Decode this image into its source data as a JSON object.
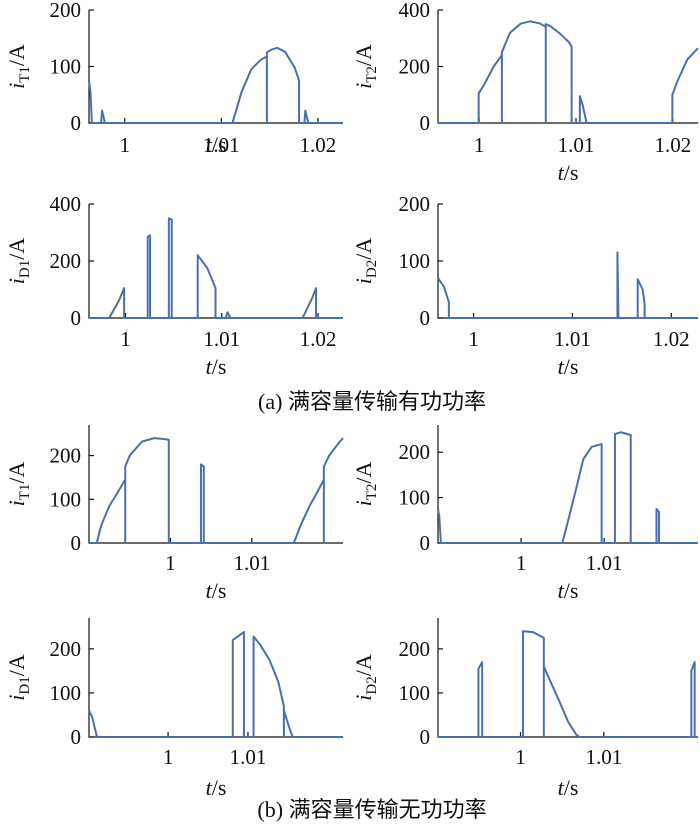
{
  "captions": {
    "a": "(a) 满容量传输有功功率",
    "b": "(b) 满容量传输无功功率"
  },
  "colors": {
    "series": "#4a6fb0",
    "axis": "#111111"
  },
  "chart_data": [
    {
      "id": "a1",
      "type": "line",
      "xlabel": {
        "var": "t",
        "unit": "/s"
      },
      "ylabel": {
        "var": "i",
        "sub": "T1",
        "unit": "/A"
      },
      "xlim": [
        0.9963,
        1.0226
      ],
      "ylim": [
        0,
        200
      ],
      "xticks": [
        1,
        1.01,
        1.02
      ],
      "xtick_labels": [
        "1",
        "1.01",
        "1.02"
      ],
      "yticks": [
        0,
        100,
        200
      ],
      "ytick_labels": [
        "0",
        "100",
        "200"
      ],
      "series": [
        {
          "points": [
            [
              0.9963,
              75
            ],
            [
              0.99645,
              55
            ],
            [
              0.9966,
              0
            ],
            [
              0.99755,
              0
            ],
            [
              0.99765,
              22
            ],
            [
              0.99795,
              0
            ],
            [
              1.01115,
              0
            ],
            [
              1.0121,
              55
            ],
            [
              1.0131,
              95
            ],
            [
              1.0141,
              112
            ],
            [
              1.01472,
              118
            ],
            [
              1.01472,
              0
            ],
            [
              1.01472,
              125
            ],
            [
              1.0152,
              130
            ],
            [
              1.0158,
              133
            ],
            [
              1.0166,
              126
            ],
            [
              1.0176,
              98
            ],
            [
              1.01805,
              75
            ],
            [
              1.01805,
              0
            ],
            [
              1.0186,
              0
            ],
            [
              1.0187,
              22
            ],
            [
              1.019,
              0
            ],
            [
              1.0226,
              0
            ]
          ]
        }
      ]
    },
    {
      "id": "a2",
      "type": "line",
      "xlabel": {
        "var": "t",
        "unit": "/s"
      },
      "ylabel": {
        "var": "i",
        "sub": "T2",
        "unit": "/A"
      },
      "xlim": [
        0.99575,
        1.0226
      ],
      "ylim": [
        0,
        400
      ],
      "xticks": [
        1,
        1.01,
        1.02
      ],
      "xtick_labels": [
        "1",
        "1.01",
        "1.02"
      ],
      "yticks": [
        0,
        200,
        400
      ],
      "ytick_labels": [
        "0",
        "200",
        "400"
      ],
      "series": [
        {
          "points": [
            [
              0.99575,
              0
            ],
            [
              0.99995,
              0
            ],
            [
              0.99995,
              105
            ],
            [
              1.0005,
              135
            ],
            [
              1.0015,
              200
            ],
            [
              1.00235,
              240
            ],
            [
              1.00235,
              0
            ],
            [
              1.00235,
              250
            ],
            [
              1.0027,
              280
            ],
            [
              1.0032,
              320
            ],
            [
              1.0043,
              352
            ],
            [
              1.0053,
              360
            ],
            [
              1.0063,
              352
            ],
            [
              1.00688,
              340
            ],
            [
              1.00688,
              0
            ],
            [
              1.00688,
              350
            ],
            [
              1.0073,
              344
            ],
            [
              1.0083,
              318
            ],
            [
              1.0093,
              285
            ],
            [
              1.00955,
              270
            ],
            [
              1.00955,
              0
            ],
            [
              1.0104,
              0
            ],
            [
              1.0104,
              95
            ],
            [
              1.0107,
              62
            ],
            [
              1.0111,
              0
            ],
            [
              1.01995,
              0
            ],
            [
              1.01995,
              100
            ],
            [
              1.0205,
              150
            ],
            [
              1.0215,
              225
            ],
            [
              1.0226,
              265
            ]
          ]
        }
      ]
    },
    {
      "id": "a3",
      "type": "line",
      "xlabel": {
        "var": "t",
        "unit": "/s"
      },
      "ylabel": {
        "var": "i",
        "sub": "D1",
        "unit": "/A"
      },
      "xlim": [
        0.9962,
        1.0226
      ],
      "ylim": [
        0,
        400
      ],
      "xticks": [
        1,
        1.01,
        1.02
      ],
      "xtick_labels": [
        "1",
        "1.01",
        "1.02"
      ],
      "yticks": [
        0,
        200,
        400
      ],
      "ytick_labels": [
        "0",
        "200",
        "400"
      ],
      "series": [
        {
          "points": [
            [
              0.9962,
              0
            ],
            [
              0.9983,
              0
            ],
            [
              0.9993,
              60
            ],
            [
              0.99985,
              105
            ],
            [
              0.99985,
              0
            ],
            [
              1.0023,
              0
            ],
            [
              1.0023,
              285
            ],
            [
              1.00255,
              290
            ],
            [
              1.00255,
              0
            ],
            [
              1.0045,
              0
            ],
            [
              1.0045,
              350
            ],
            [
              1.0048,
              345
            ],
            [
              1.0048,
              0
            ],
            [
              1.0075,
              0
            ],
            [
              1.0075,
              220
            ],
            [
              1.0085,
              175
            ],
            [
              1.00935,
              105
            ],
            [
              1.00935,
              0
            ],
            [
              1.0104,
              0
            ],
            [
              1.0106,
              20
            ],
            [
              1.0109,
              0
            ],
            [
              1.0184,
              0
            ],
            [
              1.0194,
              70
            ],
            [
              1.0198,
              105
            ],
            [
              1.0198,
              0
            ],
            [
              1.0226,
              0
            ]
          ]
        }
      ]
    },
    {
      "id": "a4",
      "type": "line",
      "xlabel": {
        "var": "t",
        "unit": "/s"
      },
      "ylabel": {
        "var": "i",
        "sub": "D2",
        "unit": "/A"
      },
      "xlim": [
        0.9964,
        1.0227
      ],
      "ylim": [
        0,
        200
      ],
      "xticks": [
        1,
        1.01,
        1.02
      ],
      "xtick_labels": [
        "1",
        "1.01",
        "1.02"
      ],
      "yticks": [
        0,
        100,
        200
      ],
      "ytick_labels": [
        "0",
        "100",
        "200"
      ],
      "series": [
        {
          "points": [
            [
              0.9964,
              70
            ],
            [
              0.997,
              55
            ],
            [
              0.9975,
              28
            ],
            [
              0.9975,
              0
            ],
            [
              1.01455,
              0
            ],
            [
              1.01455,
              115
            ],
            [
              1.01465,
              0
            ],
            [
              1.0166,
              0
            ],
            [
              1.0166,
              68
            ],
            [
              1.0171,
              50
            ],
            [
              1.0173,
              25
            ],
            [
              1.0173,
              0
            ],
            [
              1.0227,
              0
            ]
          ]
        }
      ]
    },
    {
      "id": "b1",
      "type": "line",
      "xlabel": {
        "var": "t",
        "unit": "/s"
      },
      "ylabel": {
        "var": "i",
        "sub": "T1",
        "unit": "/A"
      },
      "xlim": [
        0.99,
        1.0212
      ],
      "ylim": [
        0,
        270
      ],
      "xticks": [
        1,
        1.01
      ],
      "xtick_labels": [
        "1",
        "1.01"
      ],
      "yticks": [
        0,
        100,
        200
      ],
      "ytick_labels": [
        "0",
        "100",
        "200"
      ],
      "series": [
        {
          "points": [
            [
              0.99,
              0
            ],
            [
              0.99095,
              0
            ],
            [
              0.9915,
              40
            ],
            [
              0.9925,
              85
            ],
            [
              0.9935,
              115
            ],
            [
              0.99445,
              145
            ],
            [
              0.99445,
              0
            ],
            [
              0.99445,
              175
            ],
            [
              0.995,
              200
            ],
            [
              0.9965,
              232
            ],
            [
              0.998,
              240
            ],
            [
              0.9992,
              238
            ],
            [
              0.9998,
              236
            ],
            [
              0.9998,
              0
            ],
            [
              1.00375,
              0
            ],
            [
              1.00375,
              180
            ],
            [
              1.0041,
              175
            ],
            [
              1.0041,
              0
            ],
            [
              1.01515,
              0
            ],
            [
              1.0161,
              45
            ],
            [
              1.0171,
              85
            ],
            [
              1.018,
              115
            ],
            [
              1.01885,
              145
            ],
            [
              1.01885,
              0
            ],
            [
              1.01885,
              175
            ],
            [
              1.0195,
              200
            ],
            [
              1.0205,
              225
            ],
            [
              1.0212,
              240
            ]
          ]
        }
      ]
    },
    {
      "id": "b2",
      "type": "line",
      "xlabel": {
        "var": "t",
        "unit": "/s"
      },
      "ylabel": {
        "var": "i",
        "sub": "T2",
        "unit": "/A"
      },
      "xlim": [
        0.99,
        1.0213
      ],
      "ylim": [
        0,
        260
      ],
      "xticks": [
        1,
        1.01
      ],
      "xtick_labels": [
        "1",
        "1.01"
      ],
      "yticks": [
        0,
        100,
        200
      ],
      "ytick_labels": [
        "0",
        "100",
        "200"
      ],
      "series": [
        {
          "points": [
            [
              0.99,
              75
            ],
            [
              0.99015,
              60
            ],
            [
              0.99035,
              0
            ],
            [
              1.00495,
              0
            ],
            [
              1.0054,
              30
            ],
            [
              1.0065,
              110
            ],
            [
              1.0075,
              185
            ],
            [
              1.0085,
              212
            ],
            [
              1.0097,
              218
            ],
            [
              1.0097,
              0
            ],
            [
              1.0113,
              0
            ],
            [
              1.0113,
              240
            ],
            [
              1.012,
              244
            ],
            [
              1.0132,
              238
            ],
            [
              1.0132,
              0
            ],
            [
              1.0163,
              0
            ],
            [
              1.0163,
              75
            ],
            [
              1.0166,
              68
            ],
            [
              1.0166,
              0
            ],
            [
              1.0213,
              0
            ]
          ]
        }
      ]
    },
    {
      "id": "b3",
      "type": "line",
      "xlabel": {
        "var": "t",
        "unit": "/s"
      },
      "ylabel": {
        "var": "i",
        "sub": "D1",
        "unit": "/A"
      },
      "xlim": [
        0.9901,
        1.0219
      ],
      "ylim": [
        0,
        270
      ],
      "xticks": [
        1,
        1.01
      ],
      "xtick_labels": [
        "1",
        "1.01"
      ],
      "yticks": [
        0,
        100,
        200
      ],
      "ytick_labels": [
        "0",
        "100",
        "200"
      ],
      "series": [
        {
          "points": [
            [
              0.9901,
              60
            ],
            [
              0.9905,
              45
            ],
            [
              0.9911,
              0
            ],
            [
              1.0081,
              0
            ],
            [
              1.0081,
              220
            ],
            [
              1.0095,
              238
            ],
            [
              1.0095,
              0
            ],
            [
              1.0107,
              0
            ],
            [
              1.0107,
              228
            ],
            [
              1.0115,
              210
            ],
            [
              1.0127,
              175
            ],
            [
              1.0138,
              125
            ],
            [
              1.0145,
              70
            ],
            [
              1.0145,
              0
            ],
            [
              1.0145,
              60
            ],
            [
              1.0152,
              20
            ],
            [
              1.0156,
              0
            ],
            [
              1.0219,
              0
            ]
          ]
        }
      ]
    },
    {
      "id": "b4",
      "type": "line",
      "xlabel": {
        "var": "t",
        "unit": "/s"
      },
      "ylabel": {
        "var": "i",
        "sub": "D2",
        "unit": "/A"
      },
      "xlim": [
        0.9901,
        1.0213
      ],
      "ylim": [
        0,
        270
      ],
      "xticks": [
        1,
        1.01
      ],
      "xtick_labels": [
        "1",
        "1.01"
      ],
      "yticks": [
        0,
        100,
        200
      ],
      "ytick_labels": [
        "0",
        "100",
        "200"
      ],
      "series": [
        {
          "points": [
            [
              0.9901,
              0
            ],
            [
              0.99495,
              0
            ],
            [
              0.99495,
              155
            ],
            [
              0.9954,
              170
            ],
            [
              0.9954,
              0
            ],
            [
              1.0003,
              0
            ],
            [
              1.0003,
              240
            ],
            [
              1.0015,
              238
            ],
            [
              1.0028,
              225
            ],
            [
              1.0028,
              0
            ],
            [
              1.0028,
              160
            ],
            [
              1.0035,
              130
            ],
            [
              1.0048,
              75
            ],
            [
              1.0057,
              35
            ],
            [
              1.0067,
              5
            ],
            [
              1.0071,
              0
            ],
            [
              1.0205,
              0
            ],
            [
              1.0205,
              150
            ],
            [
              1.0209,
              170
            ],
            [
              1.0209,
              0
            ],
            [
              1.0213,
              0
            ]
          ]
        }
      ]
    }
  ]
}
